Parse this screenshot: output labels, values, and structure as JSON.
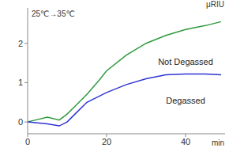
{
  "chart_data": {
    "type": "line",
    "annotation": "25℃→35℃",
    "x_label": "min",
    "y_label": "μRIU",
    "x": [
      0,
      2,
      5,
      8,
      10,
      12,
      15,
      18,
      20,
      25,
      30,
      35,
      40,
      45,
      49
    ],
    "series": [
      {
        "name": "Not Degassed",
        "color": "#2e9a3e",
        "values": [
          0,
          0.05,
          0.12,
          0.05,
          0.2,
          0.4,
          0.7,
          1.05,
          1.3,
          1.7,
          2.0,
          2.2,
          2.35,
          2.45,
          2.55
        ]
      },
      {
        "name": "Degassed",
        "color": "#2f35d4",
        "values": [
          0,
          -0.02,
          -0.05,
          -0.1,
          0,
          0.2,
          0.5,
          0.65,
          0.75,
          0.95,
          1.1,
          1.2,
          1.22,
          1.22,
          1.2
        ]
      }
    ],
    "xlim": [
      0,
      50
    ],
    "xticks": [
      0,
      20,
      40
    ],
    "ylim": [
      -0.3,
      2.9
    ],
    "yticks": [
      0,
      1,
      2
    ],
    "grid": false
  }
}
